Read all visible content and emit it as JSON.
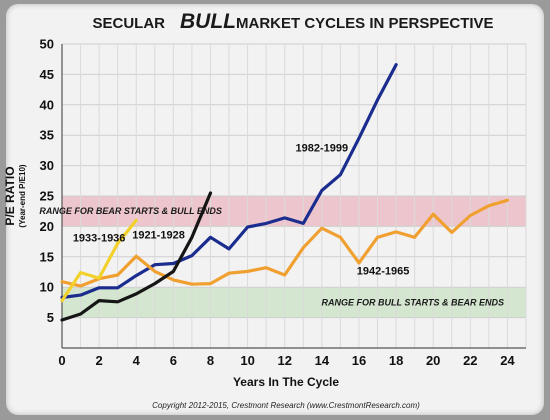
{
  "chart_data": {
    "type": "line",
    "title_parts": [
      "SECULAR",
      "BULL",
      "MARKET CYCLES IN PERSPECTIVE"
    ],
    "xlabel": "Years In The Cycle",
    "ylabel": "P/E RATIO",
    "ylabel_sub": "(Year-end P/E10)",
    "xlim": [
      0,
      25
    ],
    "ylim": [
      0,
      50
    ],
    "x_ticks": [
      0,
      2,
      4,
      6,
      8,
      10,
      12,
      14,
      16,
      18,
      20,
      22,
      24
    ],
    "y_ticks": [
      5,
      10,
      15,
      20,
      25,
      30,
      35,
      40,
      45,
      50
    ],
    "grid": true,
    "bands": [
      {
        "label": "RANGE FOR BEAR STARTS & BULL ENDS",
        "y0": 20,
        "y1": 25,
        "color": "#ecc6cc"
      },
      {
        "label": "RANGE FOR BULL STARTS & BEAR ENDS",
        "y0": 5,
        "y1": 10,
        "color": "#d4e6cf"
      }
    ],
    "series": [
      {
        "name": "1982-1999",
        "color": "#1b2c8f",
        "x": [
          0,
          1,
          2,
          3,
          4,
          5,
          6,
          7,
          8,
          9,
          10,
          11,
          12,
          13,
          14,
          15,
          16,
          17,
          18
        ],
        "y": [
          8.3,
          8.7,
          9.9,
          9.9,
          11.9,
          13.7,
          13.9,
          15.2,
          18.2,
          16.3,
          19.9,
          20.5,
          21.4,
          20.5,
          25.9,
          28.5,
          34.5,
          40.8,
          46.6
        ]
      },
      {
        "name": "1942-1965",
        "color": "#f0a030",
        "x": [
          0,
          1,
          2,
          3,
          4,
          5,
          6,
          7,
          8,
          9,
          10,
          11,
          12,
          13,
          14,
          15,
          16,
          17,
          18,
          19,
          20,
          21,
          22,
          23,
          24
        ],
        "y": [
          10.9,
          10.2,
          11.4,
          12.0,
          15.1,
          12.6,
          11.2,
          10.5,
          10.6,
          12.3,
          12.6,
          13.2,
          12.0,
          16.5,
          19.7,
          18.2,
          14.0,
          18.2,
          19.1,
          18.2,
          22.0,
          19.0,
          21.8,
          23.4,
          24.3
        ]
      },
      {
        "name": "1933-1936",
        "color": "#f2d12a",
        "x": [
          0,
          1,
          2,
          3,
          4
        ],
        "y": [
          7.8,
          12.4,
          11.5,
          17.2,
          21.0
        ]
      },
      {
        "name": "1921-1928",
        "color": "#151515",
        "x": [
          0,
          1,
          2,
          3,
          4,
          5,
          6,
          7,
          8
        ],
        "y": [
          4.6,
          5.6,
          7.8,
          7.6,
          8.9,
          10.6,
          12.6,
          18.2,
          25.5
        ]
      }
    ],
    "series_labels": [
      {
        "text": "1982-1999",
        "x": 14.0,
        "y": 32.3
      },
      {
        "text": "1933-1936",
        "x": 2.0,
        "y": 17.5
      },
      {
        "text": "1921-1928",
        "x": 5.2,
        "y": 18.0
      },
      {
        "text": "1942-1965",
        "x": 17.3,
        "y": 12.1
      }
    ],
    "band_label_positions": [
      {
        "x": 3.7,
        "y": 22.5
      },
      {
        "x": 18.9,
        "y": 7.5
      }
    ],
    "copyright": "Copyright 2012-2015, Crestmont Research (www.CrestmontResearch.com)"
  }
}
